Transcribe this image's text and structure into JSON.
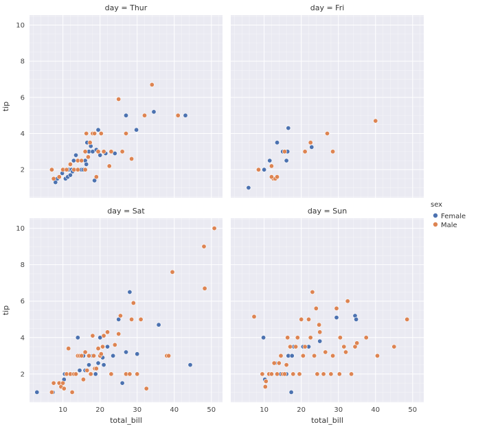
{
  "colors": {
    "Female": "#4c72b0",
    "Male": "#dd8452"
  },
  "legend": {
    "title": "sex",
    "items": [
      {
        "label": "Female",
        "color": "#4c72b0"
      },
      {
        "label": "Male",
        "color": "#dd8452"
      }
    ]
  },
  "chart_data": {
    "type": "scatter",
    "xlabel": "total_bill",
    "ylabel": "tip",
    "xlim": [
      1,
      53
    ],
    "ylim": [
      0.45,
      10.55
    ],
    "xticks": [
      10,
      20,
      30,
      40,
      50
    ],
    "yticks": [
      2,
      4,
      6,
      8,
      10
    ],
    "grid": true,
    "legend_position": "right",
    "panels": [
      {
        "title": "day = Thur",
        "series": [
          {
            "name": "Female",
            "points": [
              [
                8.5,
                1.5
              ],
              [
                9.8,
                1.8
              ],
              [
                10.3,
                2.0
              ],
              [
                10.7,
                1.5
              ],
              [
                11.0,
                2.0
              ],
              [
                11.3,
                1.6
              ],
              [
                11.6,
                2.0
              ],
              [
                12.0,
                1.7
              ],
              [
                12.3,
                2.0
              ],
              [
                12.6,
                1.9
              ],
              [
                12.9,
                2.5
              ],
              [
                13.2,
                2.0
              ],
              [
                13.5,
                2.8
              ],
              [
                13.8,
                2.0
              ],
              [
                14.3,
                2.0
              ],
              [
                15.0,
                2.0
              ],
              [
                15.5,
                2.0
              ],
              [
                16.0,
                2.5
              ],
              [
                16.3,
                2.3
              ],
              [
                16.5,
                3.5
              ],
              [
                17.0,
                3.0
              ],
              [
                17.5,
                3.3
              ],
              [
                18.0,
                3.0
              ],
              [
                18.5,
                1.4
              ],
              [
                19.0,
                3.1
              ],
              [
                19.5,
                4.2
              ],
              [
                20.0,
                2.8
              ],
              [
                21.5,
                2.9
              ],
              [
                24.0,
                2.9
              ],
              [
                27.0,
                5.0
              ],
              [
                29.8,
                4.2
              ],
              [
                34.5,
                5.2
              ],
              [
                43.0,
                5.0
              ],
              [
                8.0,
                1.3
              ]
            ]
          },
          {
            "name": "Male",
            "points": [
              [
                7.0,
                2.0
              ],
              [
                7.5,
                1.5
              ],
              [
                9.0,
                1.6
              ],
              [
                10.0,
                2.0
              ],
              [
                11.0,
                2.0
              ],
              [
                12.0,
                2.3
              ],
              [
                13.0,
                2.0
              ],
              [
                14.0,
                2.5
              ],
              [
                15.0,
                2.5
              ],
              [
                16.0,
                2.0
              ],
              [
                16.3,
                4.0
              ],
              [
                16.8,
                2.7
              ],
              [
                17.3,
                3.5
              ],
              [
                18.0,
                4.0
              ],
              [
                18.5,
                4.0
              ],
              [
                19.0,
                1.6
              ],
              [
                19.5,
                3.0
              ],
              [
                20.3,
                4.0
              ],
              [
                21.0,
                3.0
              ],
              [
                22.5,
                2.2
              ],
              [
                23.0,
                3.0
              ],
              [
                25.0,
                5.9
              ],
              [
                26.0,
                3.0
              ],
              [
                27.0,
                4.0
              ],
              [
                28.5,
                2.6
              ],
              [
                32.0,
                5.0
              ],
              [
                34.0,
                6.7
              ],
              [
                41.0,
                5.0
              ],
              [
                16.0,
                3.0
              ],
              [
                14.0,
                2.0
              ]
            ]
          }
        ]
      },
      {
        "title": "day = Fri",
        "series": [
          {
            "name": "Female",
            "points": [
              [
                5.8,
                1.0
              ],
              [
                10.0,
                2.0
              ],
              [
                11.5,
                2.5
              ],
              [
                13.5,
                3.5
              ],
              [
                15.0,
                3.0
              ],
              [
                15.5,
                3.0
              ],
              [
                16.0,
                2.5
              ],
              [
                16.5,
                4.3
              ],
              [
                16.3,
                3.0
              ],
              [
                22.8,
                3.25
              ]
            ]
          },
          {
            "name": "Male",
            "points": [
              [
                8.5,
                2.0
              ],
              [
                12.0,
                2.2
              ],
              [
                12.5,
                1.5
              ],
              [
                13.0,
                1.5
              ],
              [
                13.5,
                1.6
              ],
              [
                15.5,
                3.0
              ],
              [
                21.0,
                3.0
              ],
              [
                22.5,
                3.5
              ],
              [
                27.0,
                4.0
              ],
              [
                28.5,
                3.0
              ],
              [
                40.0,
                4.7
              ],
              [
                12.0,
                1.6
              ]
            ]
          }
        ]
      },
      {
        "title": "day = Sat",
        "series": [
          {
            "name": "Female",
            "points": [
              [
                3.0,
                1.0
              ],
              [
                7.3,
                1.0
              ],
              [
                10.3,
                1.7
              ],
              [
                10.5,
                2.0
              ],
              [
                11.0,
                2.0
              ],
              [
                12.5,
                2.0
              ],
              [
                13.0,
                2.0
              ],
              [
                13.5,
                2.0
              ],
              [
                14.0,
                4.0
              ],
              [
                14.5,
                2.2
              ],
              [
                15.5,
                3.0
              ],
              [
                16.0,
                2.2
              ],
              [
                17.0,
                2.5
              ],
              [
                18.0,
                3.0
              ],
              [
                18.8,
                2.0
              ],
              [
                19.5,
                2.6
              ],
              [
                20.0,
                4.0
              ],
              [
                20.3,
                3.0
              ],
              [
                20.7,
                2.9
              ],
              [
                21.0,
                2.5
              ],
              [
                22.0,
                3.5
              ],
              [
                23.5,
                3.0
              ],
              [
                25.0,
                5.0
              ],
              [
                26.0,
                1.5
              ],
              [
                27.0,
                3.2
              ],
              [
                28.0,
                6.5
              ],
              [
                30.0,
                3.1
              ],
              [
                35.8,
                4.7
              ],
              [
                44.3,
                2.5
              ]
            ]
          },
          {
            "name": "Male",
            "points": [
              [
                7.0,
                1.0
              ],
              [
                7.5,
                1.5
              ],
              [
                9.0,
                1.5
              ],
              [
                9.5,
                1.3
              ],
              [
                10.0,
                1.5
              ],
              [
                10.3,
                1.2
              ],
              [
                11.0,
                2.0
              ],
              [
                11.5,
                3.4
              ],
              [
                12.0,
                2.0
              ],
              [
                12.5,
                1.0
              ],
              [
                13.0,
                2.0
              ],
              [
                13.5,
                2.0
              ],
              [
                14.0,
                3.0
              ],
              [
                14.5,
                3.0
              ],
              [
                15.0,
                3.0
              ],
              [
                15.5,
                1.7
              ],
              [
                16.0,
                3.2
              ],
              [
                16.5,
                2.2
              ],
              [
                17.0,
                3.0
              ],
              [
                17.5,
                2.0
              ],
              [
                18.0,
                4.1
              ],
              [
                18.3,
                3.0
              ],
              [
                18.6,
                2.3
              ],
              [
                19.0,
                2.3
              ],
              [
                19.5,
                3.4
              ],
              [
                20.0,
                3.0
              ],
              [
                20.3,
                3.1
              ],
              [
                20.7,
                3.5
              ],
              [
                21.0,
                4.1
              ],
              [
                22.0,
                4.3
              ],
              [
                23.0,
                2.0
              ],
              [
                24.0,
                3.6
              ],
              [
                25.0,
                4.2
              ],
              [
                25.5,
                5.2
              ],
              [
                27.0,
                2.0
              ],
              [
                28.0,
                2.0
              ],
              [
                28.5,
                5.0
              ],
              [
                29.0,
                5.9
              ],
              [
                30.0,
                2.0
              ],
              [
                31.0,
                5.0
              ],
              [
                32.5,
                1.2
              ],
              [
                38.0,
                3.0
              ],
              [
                38.5,
                3.0
              ],
              [
                39.5,
                7.6
              ],
              [
                48.0,
                9.0
              ],
              [
                48.2,
                6.7
              ],
              [
                50.8,
                10.0
              ]
            ]
          }
        ]
      },
      {
        "title": "day = Sun",
        "series": [
          {
            "name": "Female",
            "points": [
              [
                9.8,
                4.0
              ],
              [
                10.2,
                1.7
              ],
              [
                13.0,
                2.6
              ],
              [
                14.5,
                2.0
              ],
              [
                16.0,
                2.0
              ],
              [
                16.5,
                3.0
              ],
              [
                17.0,
                3.5
              ],
              [
                17.3,
                1.0
              ],
              [
                17.5,
                3.0
              ],
              [
                18.0,
                3.5
              ],
              [
                20.5,
                3.5
              ],
              [
                25.0,
                3.8
              ],
              [
                29.5,
                5.1
              ],
              [
                34.5,
                5.2
              ],
              [
                34.8,
                5.0
              ],
              [
                22.0,
                3.5
              ]
            ]
          },
          {
            "name": "Male",
            "points": [
              [
                7.3,
                5.15
              ],
              [
                9.5,
                2.0
              ],
              [
                10.3,
                1.3
              ],
              [
                10.5,
                1.6
              ],
              [
                11.3,
                2.0
              ],
              [
                12.0,
                2.0
              ],
              [
                12.7,
                2.6
              ],
              [
                13.5,
                2.0
              ],
              [
                14.0,
                2.6
              ],
              [
                14.5,
                3.0
              ],
              [
                15.0,
                2.0
              ],
              [
                15.5,
                2.0
              ],
              [
                16.0,
                2.5
              ],
              [
                16.3,
                4.0
              ],
              [
                17.0,
                3.5
              ],
              [
                17.8,
                2.0
              ],
              [
                18.5,
                3.5
              ],
              [
                19.0,
                4.0
              ],
              [
                19.5,
                2.0
              ],
              [
                20.0,
                5.0
              ],
              [
                20.5,
                3.0
              ],
              [
                21.0,
                3.5
              ],
              [
                22.0,
                5.0
              ],
              [
                22.5,
                4.0
              ],
              [
                23.0,
                6.5
              ],
              [
                23.5,
                3.0
              ],
              [
                24.0,
                5.6
              ],
              [
                24.3,
                2.0
              ],
              [
                24.8,
                4.7
              ],
              [
                25.0,
                4.3
              ],
              [
                26.0,
                2.0
              ],
              [
                26.5,
                3.2
              ],
              [
                28.0,
                2.0
              ],
              [
                28.5,
                3.0
              ],
              [
                29.5,
                5.6
              ],
              [
                30.3,
                2.0
              ],
              [
                31.5,
                3.5
              ],
              [
                32.0,
                3.2
              ],
              [
                33.5,
                2.0
              ],
              [
                34.5,
                3.5
              ],
              [
                37.5,
                4.0
              ],
              [
                40.5,
                3.0
              ],
              [
                45.0,
                3.5
              ],
              [
                48.5,
                5.0
              ],
              [
                30.5,
                4.0
              ],
              [
                35.0,
                3.7
              ],
              [
                32.5,
                6.0
              ]
            ]
          }
        ]
      }
    ]
  }
}
